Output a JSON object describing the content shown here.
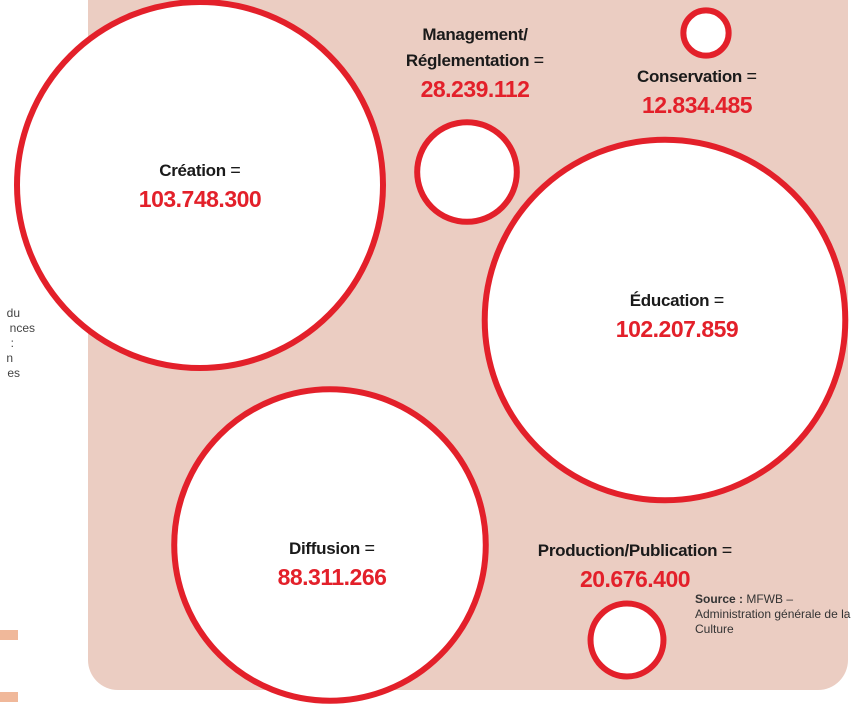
{
  "chart_data": {
    "type": "bubble",
    "categories": [
      "Création",
      "Management/ Réglementation",
      "Conservation",
      "Éducation",
      "Diffusion",
      "Production/Publication"
    ],
    "values": [
      103748300,
      28239112,
      12834485,
      102207859,
      88311266,
      20676400
    ],
    "value_labels": [
      "103.748.300",
      "28.239.112",
      "12.834.485",
      "102.207.859",
      "88.311.266",
      "20.676.400"
    ],
    "separator": "=",
    "color": "#e3202a",
    "source_label": "Source :",
    "source": "MFWB – Administration générale de la Culture"
  },
  "margin_text": [
    "du",
    "nces",
    ":",
    "n",
    "es"
  ]
}
